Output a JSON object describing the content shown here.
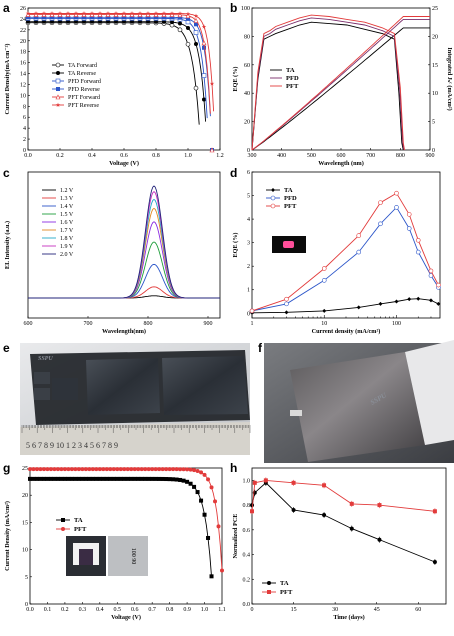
{
  "panels": {
    "a": "a",
    "b": "b",
    "c": "c",
    "d": "d",
    "e": "e",
    "f": "f",
    "g": "g",
    "h": "h"
  },
  "colors": {
    "TA": "#000000",
    "PFD": "#2b55c9",
    "PFT": "#e23b3b",
    "green": "#1f9e3c",
    "purple": "#8a2be2",
    "cyan": "#22a7c9",
    "navy": "#22237a",
    "magenta": "#c62fbf",
    "orange": "#e08a22"
  },
  "chart_data": [
    {
      "id": "a",
      "type": "line",
      "xlabel": "Voltage (V)",
      "ylabel": "Current Density(mA cm⁻²)",
      "xlim": [
        0,
        1.2
      ],
      "ylim": [
        0,
        26
      ],
      "xticks": [
        "0.0",
        "0.2",
        "0.4",
        "0.6",
        "0.8",
        "1.0",
        "1.2"
      ],
      "yticks": [
        "0",
        "2",
        "4",
        "6",
        "8",
        "10",
        "12",
        "14",
        "16",
        "18",
        "20",
        "22",
        "24",
        "26"
      ],
      "legend": [
        "TA   Forward",
        "TA   Reverse",
        "PFD Forward",
        "PFD Reverse",
        "PFT Forward",
        "PFT Reverse"
      ],
      "series": [
        {
          "name": "TA   Forward",
          "color": "#000000",
          "marker": "open-circle",
          "jsc": 23.3,
          "voc": 1.08,
          "k": 0.045
        },
        {
          "name": "TA   Reverse",
          "color": "#000000",
          "marker": "filled-circle",
          "jsc": 23.5,
          "voc": 1.12,
          "k": 0.04
        },
        {
          "name": "PFD Forward",
          "color": "#2b55c9",
          "marker": "open-square",
          "jsc": 24.1,
          "voc": 1.13,
          "k": 0.036
        },
        {
          "name": "PFD Reverse",
          "color": "#2b55c9",
          "marker": "filled-square",
          "jsc": 24.3,
          "voc": 1.15,
          "k": 0.034
        },
        {
          "name": "PFT Forward",
          "color": "#e23b3b",
          "marker": "open-triangle",
          "jsc": 24.8,
          "voc": 1.15,
          "k": 0.032
        },
        {
          "name": "PFT Reverse",
          "color": "#e23b3b",
          "marker": "filled-star",
          "jsc": 25.0,
          "voc": 1.17,
          "k": 0.03
        }
      ]
    },
    {
      "id": "b",
      "type": "line",
      "xlabel": "Wavelength (nm)",
      "ylabel": "EQE (%)",
      "y2label": "Integrated Jₛᶜ (mA/cm²)",
      "xlim": [
        300,
        900
      ],
      "ylim": [
        0,
        100
      ],
      "y2lim": [
        0,
        25
      ],
      "xticks": [
        "300",
        "400",
        "500",
        "600",
        "700",
        "800",
        "900"
      ],
      "yticks": [
        "0",
        "20",
        "40",
        "60",
        "80",
        "100"
      ],
      "y2ticks": [
        "0",
        "5",
        "10",
        "15",
        "20",
        "25"
      ],
      "legend": [
        "TA",
        "PFD",
        "PFT"
      ],
      "series": [
        {
          "name": "TA",
          "color": "#000000",
          "eqe": [
            [
              300,
              0
            ],
            [
              320,
              50
            ],
            [
              340,
              78
            ],
            [
              360,
              80
            ],
            [
              380,
              82
            ],
            [
              420,
              85
            ],
            [
              460,
              88
            ],
            [
              500,
              90
            ],
            [
              560,
              89
            ],
            [
              620,
              88
            ],
            [
              680,
              85
            ],
            [
              740,
              82
            ],
            [
              780,
              78
            ],
            [
              795,
              40
            ],
            [
              805,
              5
            ],
            [
              810,
              0
            ]
          ],
          "jsc_end": 21.5
        },
        {
          "name": "PFD",
          "color": "#7a2d6a",
          "eqe": [
            [
              300,
              0
            ],
            [
              320,
              52
            ],
            [
              340,
              80
            ],
            [
              360,
              82
            ],
            [
              380,
              85
            ],
            [
              420,
              88
            ],
            [
              460,
              91
            ],
            [
              500,
              93
            ],
            [
              560,
              92
            ],
            [
              620,
              90
            ],
            [
              680,
              88
            ],
            [
              740,
              84
            ],
            [
              780,
              80
            ],
            [
              798,
              42
            ],
            [
              808,
              5
            ],
            [
              812,
              0
            ]
          ],
          "jsc_end": 23.0
        },
        {
          "name": "PFT",
          "color": "#e23b3b",
          "eqe": [
            [
              300,
              0
            ],
            [
              320,
              55
            ],
            [
              340,
              82
            ],
            [
              360,
              84
            ],
            [
              380,
              87
            ],
            [
              420,
              90
            ],
            [
              460,
              93
            ],
            [
              500,
              95
            ],
            [
              560,
              94
            ],
            [
              620,
              92
            ],
            [
              680,
              90
            ],
            [
              740,
              86
            ],
            [
              780,
              82
            ],
            [
              800,
              44
            ],
            [
              810,
              5
            ],
            [
              814,
              0
            ]
          ],
          "jsc_end": 23.5
        }
      ]
    },
    {
      "id": "c",
      "type": "line",
      "xlabel": "Wavelength(nm)",
      "ylabel": "EL Intensity (a.u.)",
      "xlim": [
        600,
        920
      ],
      "xticks": [
        "600",
        "700",
        "800",
        "900"
      ],
      "legend": [
        "1.2 V",
        "1.3 V",
        "1.4 V",
        "1.5 V",
        "1.6 V",
        "1.7 V",
        "1.8 V",
        "1.9 V",
        "2.0 V"
      ],
      "peak": 810,
      "series": [
        {
          "name": "1.2 V",
          "color": "#000000",
          "amp": 0.02
        },
        {
          "name": "1.3 V",
          "color": "#e23b3b",
          "amp": 0.1
        },
        {
          "name": "1.4 V",
          "color": "#2b55c9",
          "amp": 0.3
        },
        {
          "name": "1.5 V",
          "color": "#1f9e3c",
          "amp": 0.5
        },
        {
          "name": "1.6 V",
          "color": "#8a2be2",
          "amp": 0.68
        },
        {
          "name": "1.7 V",
          "color": "#e08a22",
          "amp": 0.8
        },
        {
          "name": "1.8 V",
          "color": "#22a7c9",
          "amp": 0.88
        },
        {
          "name": "1.9 V",
          "color": "#c62fbf",
          "amp": 0.95
        },
        {
          "name": "2.0 V",
          "color": "#22237a",
          "amp": 1.0
        }
      ]
    },
    {
      "id": "d",
      "type": "line",
      "xlabel": "Current density (mA/cm²)",
      "ylabel": "EQE (%)",
      "xscale": "log",
      "xlim": [
        1,
        400
      ],
      "ylim": [
        -0.2,
        6
      ],
      "xticks": [
        "1",
        "10",
        "100"
      ],
      "yticks": [
        "0",
        "1",
        "2",
        "3",
        "4",
        "5",
        "6"
      ],
      "legend": [
        "TA",
        "PFD",
        "PFT"
      ],
      "series": [
        {
          "name": "TA",
          "color": "#000000",
          "points": [
            [
              1,
              0.02
            ],
            [
              3,
              0.04
            ],
            [
              10,
              0.1
            ],
            [
              30,
              0.25
            ],
            [
              60,
              0.4
            ],
            [
              100,
              0.5
            ],
            [
              150,
              0.6
            ],
            [
              200,
              0.62
            ],
            [
              300,
              0.55
            ],
            [
              380,
              0.4
            ]
          ]
        },
        {
          "name": "PFD",
          "color": "#2b55c9",
          "points": [
            [
              1,
              0.1
            ],
            [
              3,
              0.4
            ],
            [
              10,
              1.4
            ],
            [
              30,
              2.6
            ],
            [
              60,
              3.8
            ],
            [
              100,
              4.5
            ],
            [
              150,
              3.6
            ],
            [
              200,
              2.6
            ],
            [
              300,
              1.6
            ],
            [
              380,
              1.1
            ]
          ]
        },
        {
          "name": "PFT",
          "color": "#e23b3b",
          "points": [
            [
              1,
              0.1
            ],
            [
              3,
              0.6
            ],
            [
              10,
              1.9
            ],
            [
              30,
              3.3
            ],
            [
              60,
              4.7
            ],
            [
              100,
              5.1
            ],
            [
              150,
              4.2
            ],
            [
              200,
              3.1
            ],
            [
              300,
              1.8
            ],
            [
              380,
              1.2
            ]
          ]
        }
      ]
    },
    {
      "id": "g",
      "type": "line",
      "xlabel": "Voltage (V)",
      "ylabel": "Current Density (mA/cm²)",
      "xlim": [
        0,
        1.1
      ],
      "ylim": [
        0,
        25
      ],
      "xticks": [
        "0.0",
        "0.1",
        "0.2",
        "0.3",
        "0.4",
        "0.5",
        "0.6",
        "0.7",
        "0.8",
        "0.9",
        "1.0",
        "1.1"
      ],
      "yticks": [
        "0",
        "5",
        "10",
        "15",
        "20",
        "25"
      ],
      "legend": [
        "TA",
        "PFT"
      ],
      "series": [
        {
          "name": "TA",
          "color": "#000000",
          "jsc": 23.0,
          "voc": 1.05,
          "k": 0.04
        },
        {
          "name": "PFT",
          "color": "#e23b3b",
          "jsc": 24.8,
          "voc": 1.11,
          "k": 0.035
        }
      ],
      "inset_text": "100 90"
    },
    {
      "id": "h",
      "type": "line",
      "xlabel": "Time (days)",
      "ylabel": "Normalized PCE",
      "xlim": [
        0,
        70
      ],
      "ylim": [
        0.0,
        1.1
      ],
      "xticks": [
        "0",
        "15",
        "30",
        "45",
        "60"
      ],
      "yticks": [
        "0.0",
        "0.2",
        "0.4",
        "0.6",
        "0.8",
        "1.0"
      ],
      "legend": [
        "TA",
        "PFT"
      ],
      "series": [
        {
          "name": "TA",
          "color": "#000000",
          "points": [
            [
              0,
              0.8
            ],
            [
              1,
              0.9
            ],
            [
              5,
              0.98
            ],
            [
              15,
              0.76
            ],
            [
              26,
              0.72
            ],
            [
              36,
              0.61
            ],
            [
              46,
              0.52
            ],
            [
              66,
              0.34
            ]
          ]
        },
        {
          "name": "PFT",
          "color": "#e23b3b",
          "points": [
            [
              0,
              0.75
            ],
            [
              1,
              0.98
            ],
            [
              5,
              1.0
            ],
            [
              15,
              0.98
            ],
            [
              26,
              0.96
            ],
            [
              36,
              0.81
            ],
            [
              46,
              0.8
            ],
            [
              66,
              0.75
            ]
          ]
        }
      ]
    }
  ],
  "photos": {
    "e": {
      "ruler": "5 6 7 8 9 10 1 2 3 4 5 6 7 8 9",
      "label": "SSPU"
    },
    "f": {
      "label": "SSPU"
    }
  }
}
